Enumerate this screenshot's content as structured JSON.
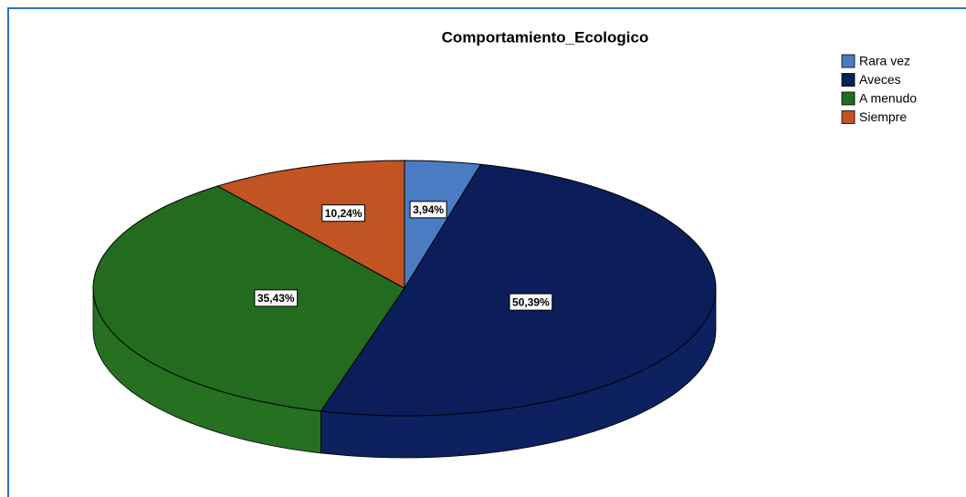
{
  "chart_data": {
    "type": "pie",
    "title": "Comportamiento_Ecologico",
    "categories": [
      "Rara vez",
      "Aveces",
      "A menudo",
      "Siempre"
    ],
    "values": [
      3.94,
      50.39,
      35.43,
      10.24
    ],
    "value_labels": [
      "3,94%",
      "50,39%",
      "35,43%",
      "10,24%"
    ],
    "colors": [
      "#4a7cc4",
      "#0c1e5a",
      "#236b1f",
      "#c25322"
    ],
    "legend": "top-right"
  }
}
